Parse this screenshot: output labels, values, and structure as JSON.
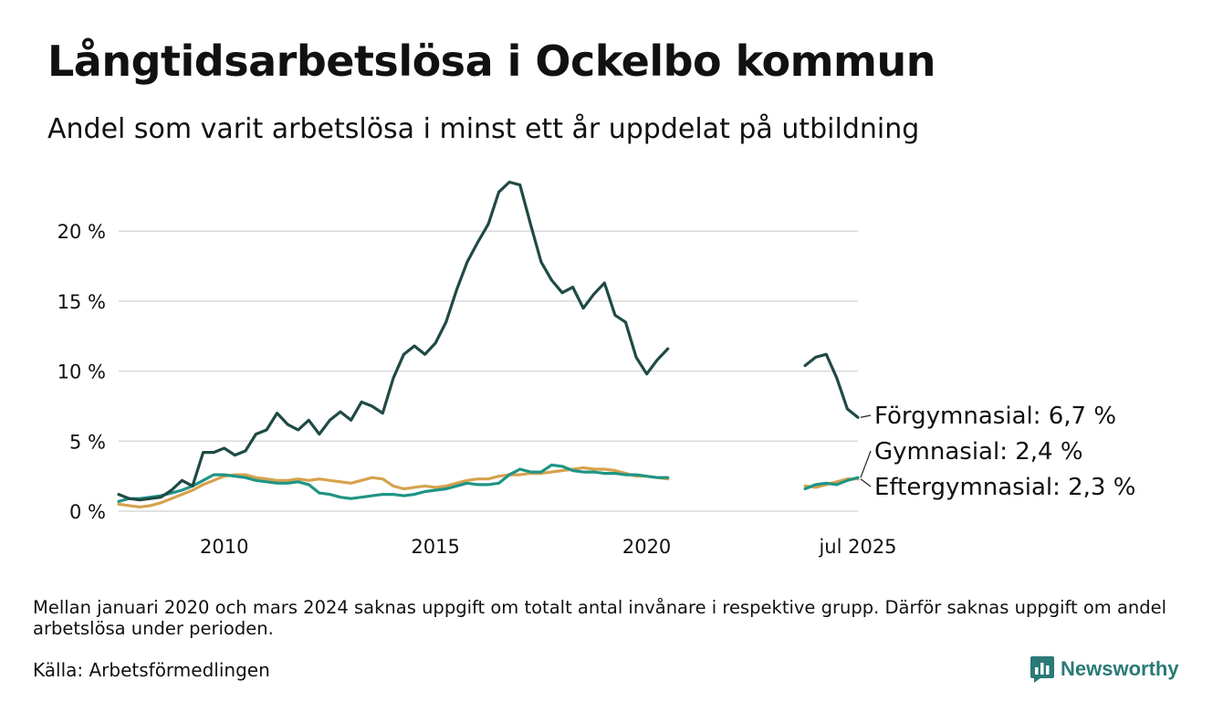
{
  "header": {
    "title": "Långtidsarbetslösa i Ockelbo kommun",
    "subtitle": "Andel som varit arbetslösa i minst ett år uppdelat på utbildning"
  },
  "footer": {
    "note": "Mellan januari 2020 och mars 2024 saknas uppgift om totalt antal invånare i respektive grupp. Därför saknas uppgift om andel arbetslösa under perioden.",
    "source": "Källa: Arbetsförmedlingen",
    "brand": "Newsworthy"
  },
  "chart_data": {
    "type": "line",
    "title": "Långtidsarbetslösa i Ockelbo kommun",
    "subtitle": "Andel som varit arbetslösa i minst ett år uppdelat på utbildning",
    "xlabel": "",
    "ylabel": "",
    "x_ticks": [
      "2010",
      "2015",
      "2020",
      "jul 2025"
    ],
    "y_ticks": [
      "0 %",
      "5 %",
      "10 %",
      "15 %",
      "20 %"
    ],
    "xlim": [
      "2008-01",
      "2025-07"
    ],
    "ylim": [
      0,
      23.6
    ],
    "grid": "horizontal",
    "legend": "direct labels at line ends",
    "series": [
      {
        "name": "Förgymnasial",
        "end_label": "Förgymnasial: 6,7 %",
        "color": "#1f4a45",
        "points": [
          [
            "2008-01",
            1.2
          ],
          [
            "2008-04",
            0.9
          ],
          [
            "2008-07",
            0.8
          ],
          [
            "2008-10",
            0.9
          ],
          [
            "2009-01",
            1.0
          ],
          [
            "2009-04",
            1.5
          ],
          [
            "2009-07",
            2.2
          ],
          [
            "2009-10",
            1.8
          ],
          [
            "2010-01",
            4.2
          ],
          [
            "2010-04",
            4.2
          ],
          [
            "2010-07",
            4.5
          ],
          [
            "2010-10",
            4.0
          ],
          [
            "2011-01",
            4.3
          ],
          [
            "2011-04",
            5.5
          ],
          [
            "2011-07",
            5.8
          ],
          [
            "2011-10",
            7.0
          ],
          [
            "2012-01",
            6.2
          ],
          [
            "2012-04",
            5.8
          ],
          [
            "2012-07",
            6.5
          ],
          [
            "2012-10",
            5.5
          ],
          [
            "2013-01",
            6.5
          ],
          [
            "2013-04",
            7.1
          ],
          [
            "2013-07",
            6.5
          ],
          [
            "2013-10",
            7.8
          ],
          [
            "2014-01",
            7.5
          ],
          [
            "2014-04",
            7.0
          ],
          [
            "2014-07",
            9.5
          ],
          [
            "2014-10",
            11.2
          ],
          [
            "2015-01",
            11.8
          ],
          [
            "2015-04",
            11.2
          ],
          [
            "2015-07",
            12.0
          ],
          [
            "2015-10",
            13.5
          ],
          [
            "2016-01",
            15.8
          ],
          [
            "2016-04",
            17.8
          ],
          [
            "2016-07",
            19.2
          ],
          [
            "2016-10",
            20.5
          ],
          [
            "2017-01",
            22.8
          ],
          [
            "2017-04",
            23.5
          ],
          [
            "2017-07",
            23.3
          ],
          [
            "2017-10",
            20.5
          ],
          [
            "2018-01",
            17.8
          ],
          [
            "2018-04",
            16.5
          ],
          [
            "2018-07",
            15.6
          ],
          [
            "2018-10",
            16.0
          ],
          [
            "2019-01",
            14.5
          ],
          [
            "2019-04",
            15.5
          ],
          [
            "2019-07",
            16.3
          ],
          [
            "2019-10",
            14.0
          ],
          [
            "2020-01",
            13.5
          ],
          [
            "2020-04",
            11.0
          ],
          [
            "2020-07",
            9.8
          ],
          [
            "2020-10",
            10.8
          ],
          [
            "2021-01",
            11.6
          ],
          null,
          [
            "2024-04",
            10.4
          ],
          [
            "2024-07",
            11.0
          ],
          [
            "2024-10",
            11.2
          ],
          [
            "2025-01",
            9.5
          ],
          [
            "2025-04",
            7.3
          ],
          [
            "2025-07",
            6.7
          ]
        ]
      },
      {
        "name": "Gymnasial",
        "end_label": "Gymnasial: 2,4 %",
        "color": "#1f9485",
        "points": [
          [
            "2008-01",
            0.7
          ],
          [
            "2008-04",
            0.9
          ],
          [
            "2008-07",
            0.9
          ],
          [
            "2008-10",
            1.0
          ],
          [
            "2009-01",
            1.1
          ],
          [
            "2009-04",
            1.3
          ],
          [
            "2009-07",
            1.5
          ],
          [
            "2009-10",
            1.8
          ],
          [
            "2010-01",
            2.2
          ],
          [
            "2010-04",
            2.6
          ],
          [
            "2010-07",
            2.6
          ],
          [
            "2010-10",
            2.5
          ],
          [
            "2011-01",
            2.4
          ],
          [
            "2011-04",
            2.2
          ],
          [
            "2011-07",
            2.1
          ],
          [
            "2011-10",
            2.0
          ],
          [
            "2012-01",
            2.0
          ],
          [
            "2012-04",
            2.1
          ],
          [
            "2012-07",
            1.9
          ],
          [
            "2012-10",
            1.3
          ],
          [
            "2013-01",
            1.2
          ],
          [
            "2013-04",
            1.0
          ],
          [
            "2013-07",
            0.9
          ],
          [
            "2013-10",
            1.0
          ],
          [
            "2014-01",
            1.1
          ],
          [
            "2014-04",
            1.2
          ],
          [
            "2014-07",
            1.2
          ],
          [
            "2014-10",
            1.1
          ],
          [
            "2015-01",
            1.2
          ],
          [
            "2015-04",
            1.4
          ],
          [
            "2015-07",
            1.5
          ],
          [
            "2015-10",
            1.6
          ],
          [
            "2016-01",
            1.8
          ],
          [
            "2016-04",
            2.0
          ],
          [
            "2016-07",
            1.9
          ],
          [
            "2016-10",
            1.9
          ],
          [
            "2017-01",
            2.0
          ],
          [
            "2017-04",
            2.6
          ],
          [
            "2017-07",
            3.0
          ],
          [
            "2017-10",
            2.8
          ],
          [
            "2018-01",
            2.8
          ],
          [
            "2018-04",
            3.3
          ],
          [
            "2018-07",
            3.2
          ],
          [
            "2018-10",
            2.9
          ],
          [
            "2019-01",
            2.8
          ],
          [
            "2019-04",
            2.8
          ],
          [
            "2019-07",
            2.7
          ],
          [
            "2019-10",
            2.7
          ],
          [
            "2020-01",
            2.6
          ],
          [
            "2020-04",
            2.6
          ],
          [
            "2020-07",
            2.5
          ],
          [
            "2020-10",
            2.4
          ],
          [
            "2021-01",
            2.4
          ],
          null,
          [
            "2024-04",
            1.6
          ],
          [
            "2024-07",
            1.9
          ],
          [
            "2024-10",
            2.0
          ],
          [
            "2025-01",
            1.9
          ],
          [
            "2025-04",
            2.2
          ],
          [
            "2025-07",
            2.4
          ]
        ]
      },
      {
        "name": "Eftergymnasial",
        "end_label": "Eftergymnasial: 2,3 %",
        "color": "#d6a24e",
        "points": [
          [
            "2008-01",
            0.5
          ],
          [
            "2008-04",
            0.4
          ],
          [
            "2008-07",
            0.3
          ],
          [
            "2008-10",
            0.4
          ],
          [
            "2009-01",
            0.6
          ],
          [
            "2009-04",
            0.9
          ],
          [
            "2009-07",
            1.2
          ],
          [
            "2009-10",
            1.5
          ],
          [
            "2010-01",
            1.9
          ],
          [
            "2010-04",
            2.2
          ],
          [
            "2010-07",
            2.5
          ],
          [
            "2010-10",
            2.6
          ],
          [
            "2011-01",
            2.6
          ],
          [
            "2011-04",
            2.4
          ],
          [
            "2011-07",
            2.3
          ],
          [
            "2011-10",
            2.2
          ],
          [
            "2012-01",
            2.2
          ],
          [
            "2012-04",
            2.3
          ],
          [
            "2012-07",
            2.2
          ],
          [
            "2012-10",
            2.3
          ],
          [
            "2013-01",
            2.2
          ],
          [
            "2013-04",
            2.1
          ],
          [
            "2013-07",
            2.0
          ],
          [
            "2013-10",
            2.2
          ],
          [
            "2014-01",
            2.4
          ],
          [
            "2014-04",
            2.3
          ],
          [
            "2014-07",
            1.8
          ],
          [
            "2014-10",
            1.6
          ],
          [
            "2015-01",
            1.7
          ],
          [
            "2015-04",
            1.8
          ],
          [
            "2015-07",
            1.7
          ],
          [
            "2015-10",
            1.8
          ],
          [
            "2016-01",
            2.0
          ],
          [
            "2016-04",
            2.2
          ],
          [
            "2016-07",
            2.3
          ],
          [
            "2016-10",
            2.3
          ],
          [
            "2017-01",
            2.5
          ],
          [
            "2017-04",
            2.6
          ],
          [
            "2017-07",
            2.6
          ],
          [
            "2017-10",
            2.7
          ],
          [
            "2018-01",
            2.7
          ],
          [
            "2018-04",
            2.8
          ],
          [
            "2018-07",
            2.9
          ],
          [
            "2018-10",
            3.0
          ],
          [
            "2019-01",
            3.1
          ],
          [
            "2019-04",
            3.0
          ],
          [
            "2019-07",
            3.0
          ],
          [
            "2019-10",
            2.9
          ],
          [
            "2020-01",
            2.7
          ],
          [
            "2020-04",
            2.5
          ],
          [
            "2020-07",
            2.5
          ],
          [
            "2020-10",
            2.4
          ],
          [
            "2021-01",
            2.3
          ],
          null,
          [
            "2024-04",
            1.8
          ],
          [
            "2024-07",
            1.7
          ],
          [
            "2024-10",
            1.9
          ],
          [
            "2025-01",
            2.1
          ],
          [
            "2025-04",
            2.3
          ],
          [
            "2025-07",
            2.3
          ]
        ]
      }
    ]
  }
}
